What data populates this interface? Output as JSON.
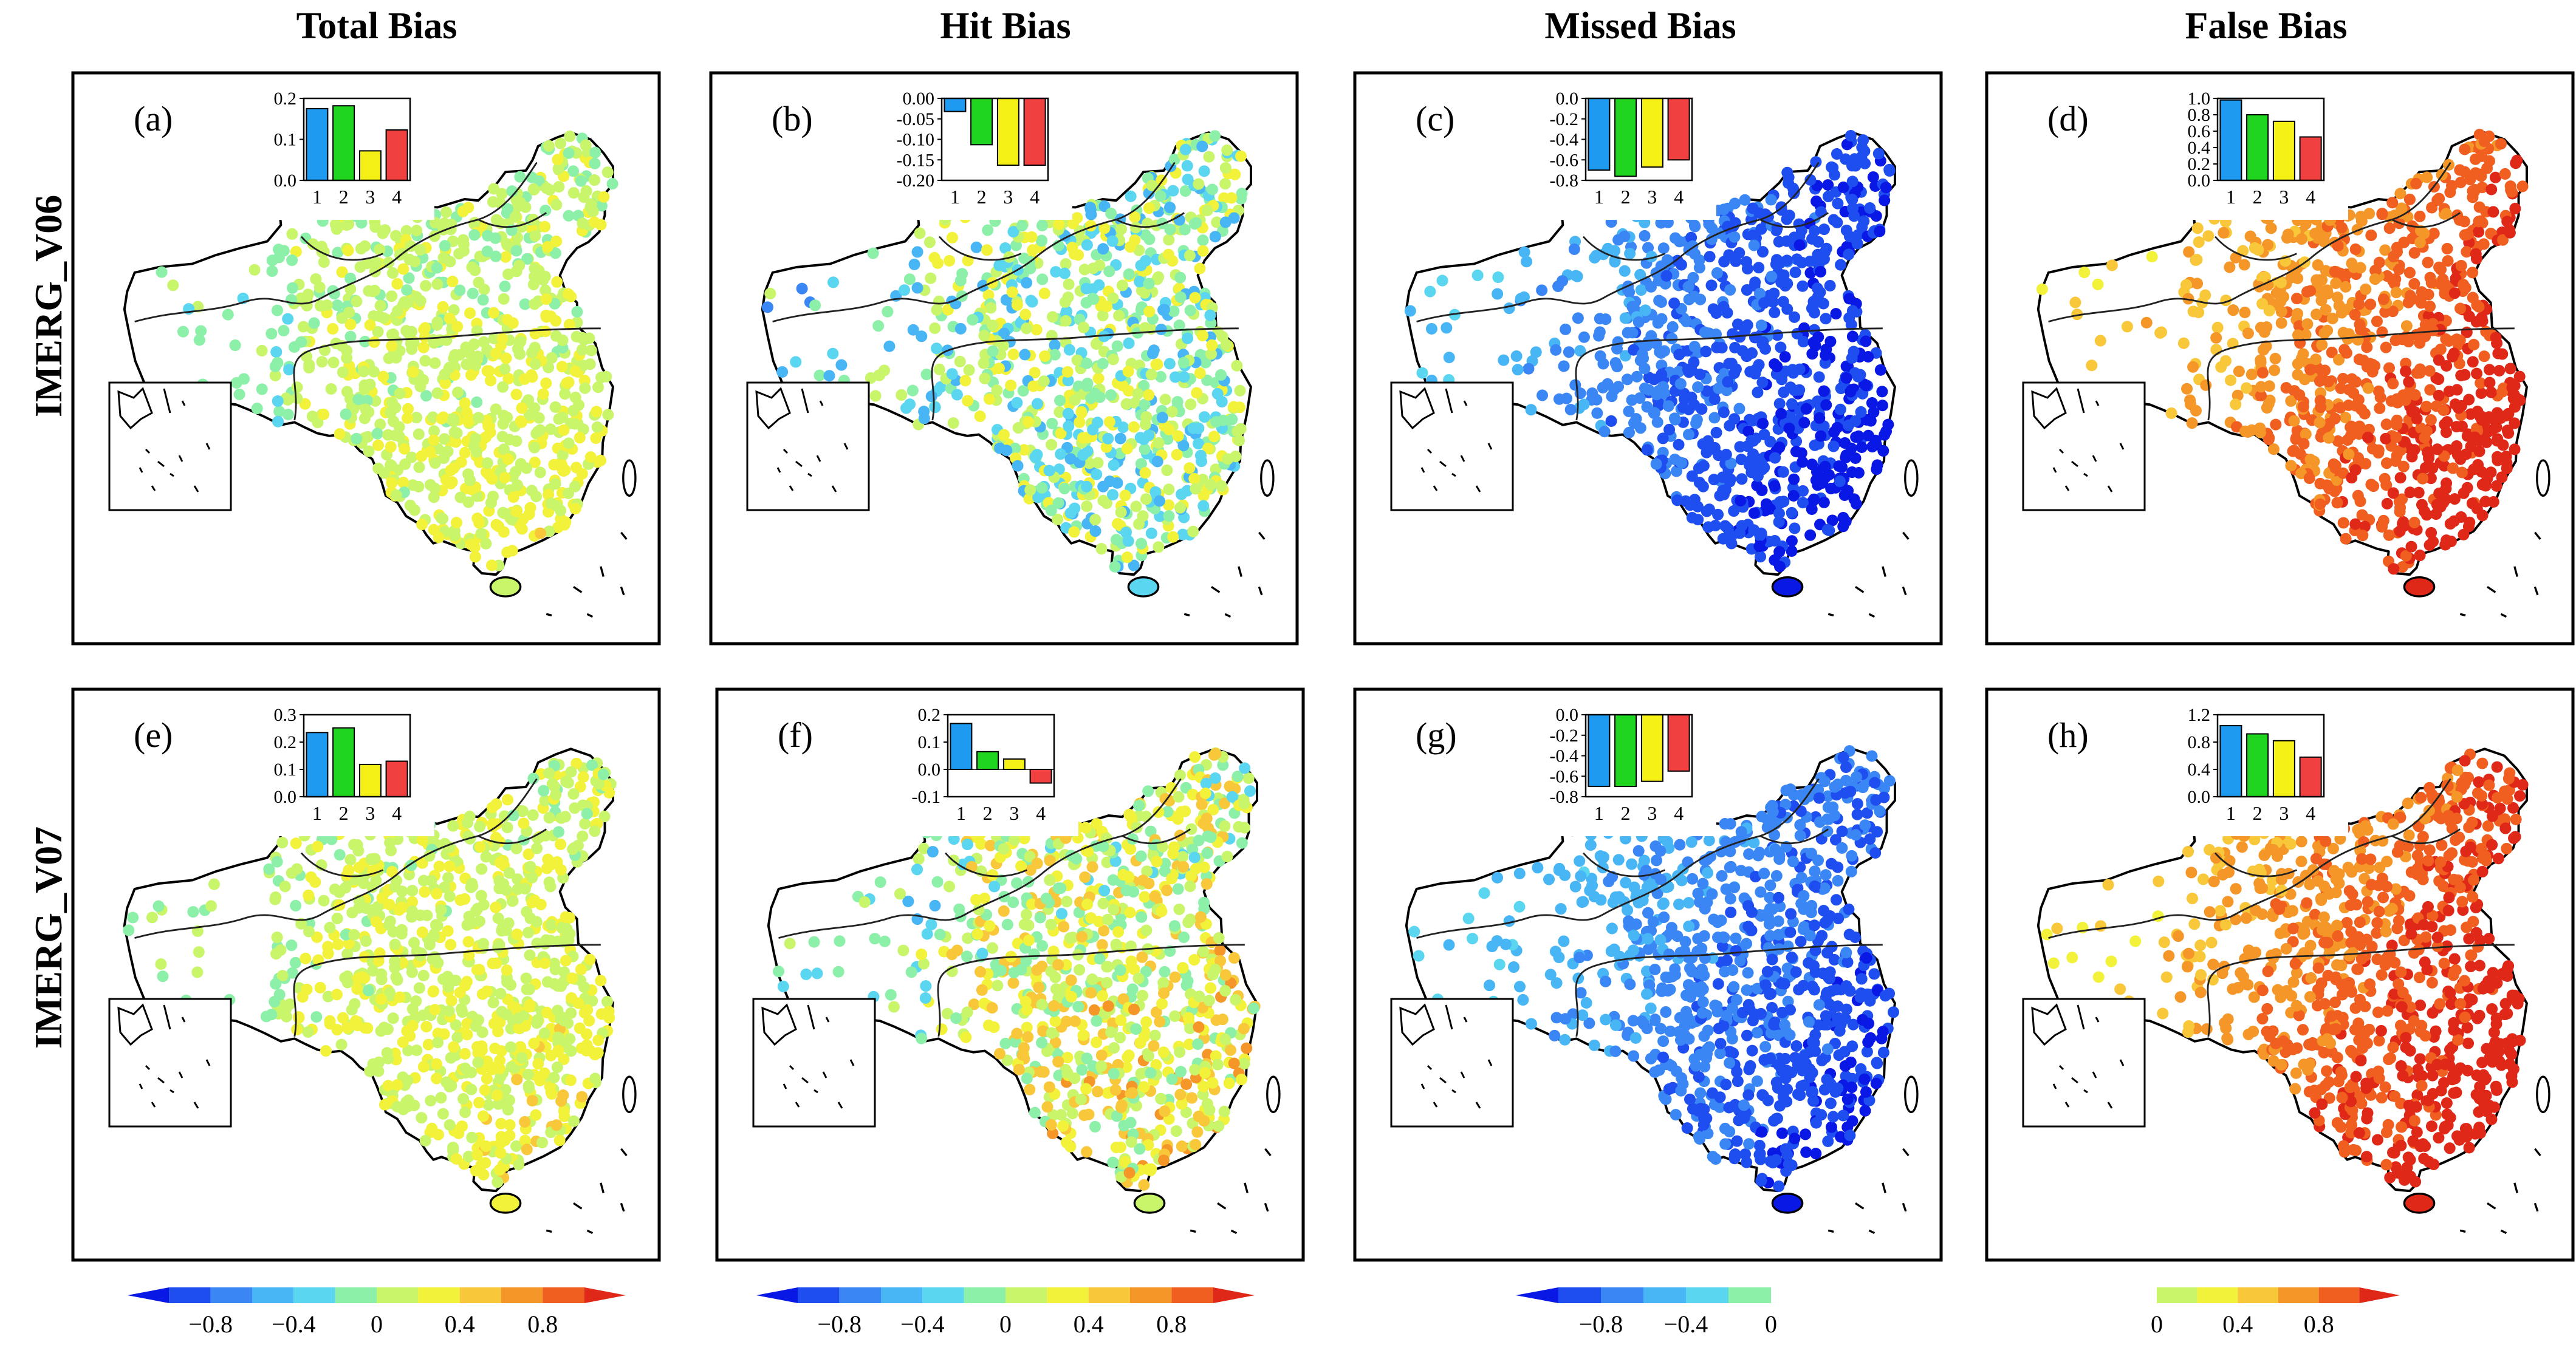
{
  "column_titles": [
    "Total Bias",
    "Hit Bias",
    "Missed Bias",
    "False Bias"
  ],
  "row_labels": [
    "IMERG_V06",
    "IMERG_V07"
  ],
  "colors": {
    "bar_colors": [
      "#1e9bf0",
      "#1fd51f",
      "#f5f015",
      "#f04040"
    ],
    "diverging_scale": [
      "#0a18e6",
      "#1f4ef0",
      "#3a86f5",
      "#48b6f5",
      "#5ad6f0",
      "#8cf0a8",
      "#c8f56a",
      "#f2f23a",
      "#f8c83a",
      "#f59628",
      "#f05e20",
      "#e02818"
    ],
    "missed_scale": [
      "#0a18e6",
      "#1f4ef0",
      "#3a86f5",
      "#48b6f5",
      "#5ad6f0",
      "#8cf0a8"
    ],
    "false_scale": [
      "#c8f56a",
      "#f2f23a",
      "#f8c83a",
      "#f59628",
      "#f05e20",
      "#e02818"
    ]
  },
  "chart_data": [
    {
      "id": "a",
      "panel_label": "(a)",
      "type": "bar",
      "title": "Total Bias",
      "row": "IMERG_V06",
      "categories": [
        "1",
        "2",
        "3",
        "4"
      ],
      "values": [
        0.175,
        0.182,
        0.072,
        0.123
      ],
      "ylim": [
        0,
        0.2
      ],
      "yticks": [
        "0.0",
        "0.1",
        "0.2"
      ],
      "map_scheme": "total_v06"
    },
    {
      "id": "b",
      "panel_label": "(b)",
      "type": "bar",
      "title": "Hit Bias",
      "row": "IMERG_V06",
      "categories": [
        "1",
        "2",
        "3",
        "4"
      ],
      "values": [
        -0.032,
        -0.113,
        -0.163,
        -0.163
      ],
      "ylim": [
        -0.2,
        0
      ],
      "yticks": [
        "0.00",
        "-0.05",
        "-0.10",
        "-0.15",
        "-0.20"
      ],
      "map_scheme": "hit_v06"
    },
    {
      "id": "c",
      "panel_label": "(c)",
      "type": "bar",
      "title": "Missed Bias",
      "row": "IMERG_V06",
      "categories": [
        "1",
        "2",
        "3",
        "4"
      ],
      "values": [
        -0.7,
        -0.76,
        -0.67,
        -0.6
      ],
      "ylim": [
        -0.8,
        0
      ],
      "yticks": [
        "0.0",
        "-0.2",
        "-0.4",
        "-0.6",
        "-0.8"
      ],
      "map_scheme": "missed_v06"
    },
    {
      "id": "d",
      "panel_label": "(d)",
      "type": "bar",
      "title": "False Bias",
      "row": "IMERG_V06",
      "categories": [
        "1",
        "2",
        "3",
        "4"
      ],
      "values": [
        0.98,
        0.8,
        0.72,
        0.53
      ],
      "ylim": [
        0,
        1.0
      ],
      "yticks": [
        "0.0",
        "0.2",
        "0.4",
        "0.6",
        "0.8",
        "1.0"
      ],
      "map_scheme": "false_v06"
    },
    {
      "id": "e",
      "panel_label": "(e)",
      "type": "bar",
      "title": "Total Bias",
      "row": "IMERG_V07",
      "categories": [
        "1",
        "2",
        "3",
        "4"
      ],
      "values": [
        0.235,
        0.252,
        0.118,
        0.13
      ],
      "ylim": [
        0,
        0.3
      ],
      "yticks": [
        "0.0",
        "0.1",
        "0.2",
        "0.3"
      ],
      "map_scheme": "total_v07"
    },
    {
      "id": "f",
      "panel_label": "(f)",
      "type": "bar",
      "title": "Hit Bias",
      "row": "IMERG_V07",
      "categories": [
        "1",
        "2",
        "3",
        "4"
      ],
      "values": [
        0.168,
        0.065,
        0.038,
        -0.05
      ],
      "ylim": [
        -0.1,
        0.2
      ],
      "yticks": [
        "0.2",
        "0.1",
        "0.0",
        "-0.1"
      ],
      "map_scheme": "hit_v07"
    },
    {
      "id": "g",
      "panel_label": "(g)",
      "type": "bar",
      "title": "Missed Bias",
      "row": "IMERG_V07",
      "categories": [
        "1",
        "2",
        "3",
        "4"
      ],
      "values": [
        -0.7,
        -0.7,
        -0.65,
        -0.55
      ],
      "ylim": [
        -0.8,
        0
      ],
      "yticks": [
        "0.0",
        "-0.2",
        "-0.4",
        "-0.6",
        "-0.8"
      ],
      "map_scheme": "missed_v07"
    },
    {
      "id": "h",
      "panel_label": "(h)",
      "type": "bar",
      "title": "False Bias",
      "row": "IMERG_V07",
      "categories": [
        "1",
        "2",
        "3",
        "4"
      ],
      "values": [
        1.04,
        0.92,
        0.82,
        0.58
      ],
      "ylim": [
        0,
        1.2
      ],
      "yticks": [
        "0.0",
        "0.4",
        "0.8",
        "1.2"
      ],
      "map_scheme": "false_v07"
    }
  ],
  "colorbars": [
    {
      "id": "cb1",
      "column": "Total Bias",
      "scale": "diverging_scale",
      "tick_labels": [
        "−0.8",
        "−0.4",
        "0",
        "0.4",
        "0.8"
      ],
      "tick_values": [
        -0.8,
        -0.4,
        0,
        0.4,
        0.8
      ],
      "range": [
        -1.2,
        1.2
      ]
    },
    {
      "id": "cb2",
      "column": "Hit Bias",
      "scale": "diverging_scale",
      "tick_labels": [
        "−0.8",
        "−0.4",
        "0",
        "0.4",
        "0.8"
      ],
      "tick_values": [
        -0.8,
        -0.4,
        0,
        0.4,
        0.8
      ],
      "range": [
        -1.2,
        1.2
      ]
    },
    {
      "id": "cb3",
      "column": "Missed Bias",
      "scale": "missed_scale",
      "tick_labels": [
        "−0.8",
        "−0.4",
        "0"
      ],
      "tick_values": [
        -0.8,
        -0.4,
        0
      ],
      "range": [
        -1.2,
        0
      ]
    },
    {
      "id": "cb4",
      "column": "False Bias",
      "scale": "false_scale",
      "tick_labels": [
        "0",
        "0.4",
        "0.8"
      ],
      "tick_values": [
        0,
        0.4,
        0.8
      ],
      "range": [
        0,
        1.2
      ]
    }
  ]
}
